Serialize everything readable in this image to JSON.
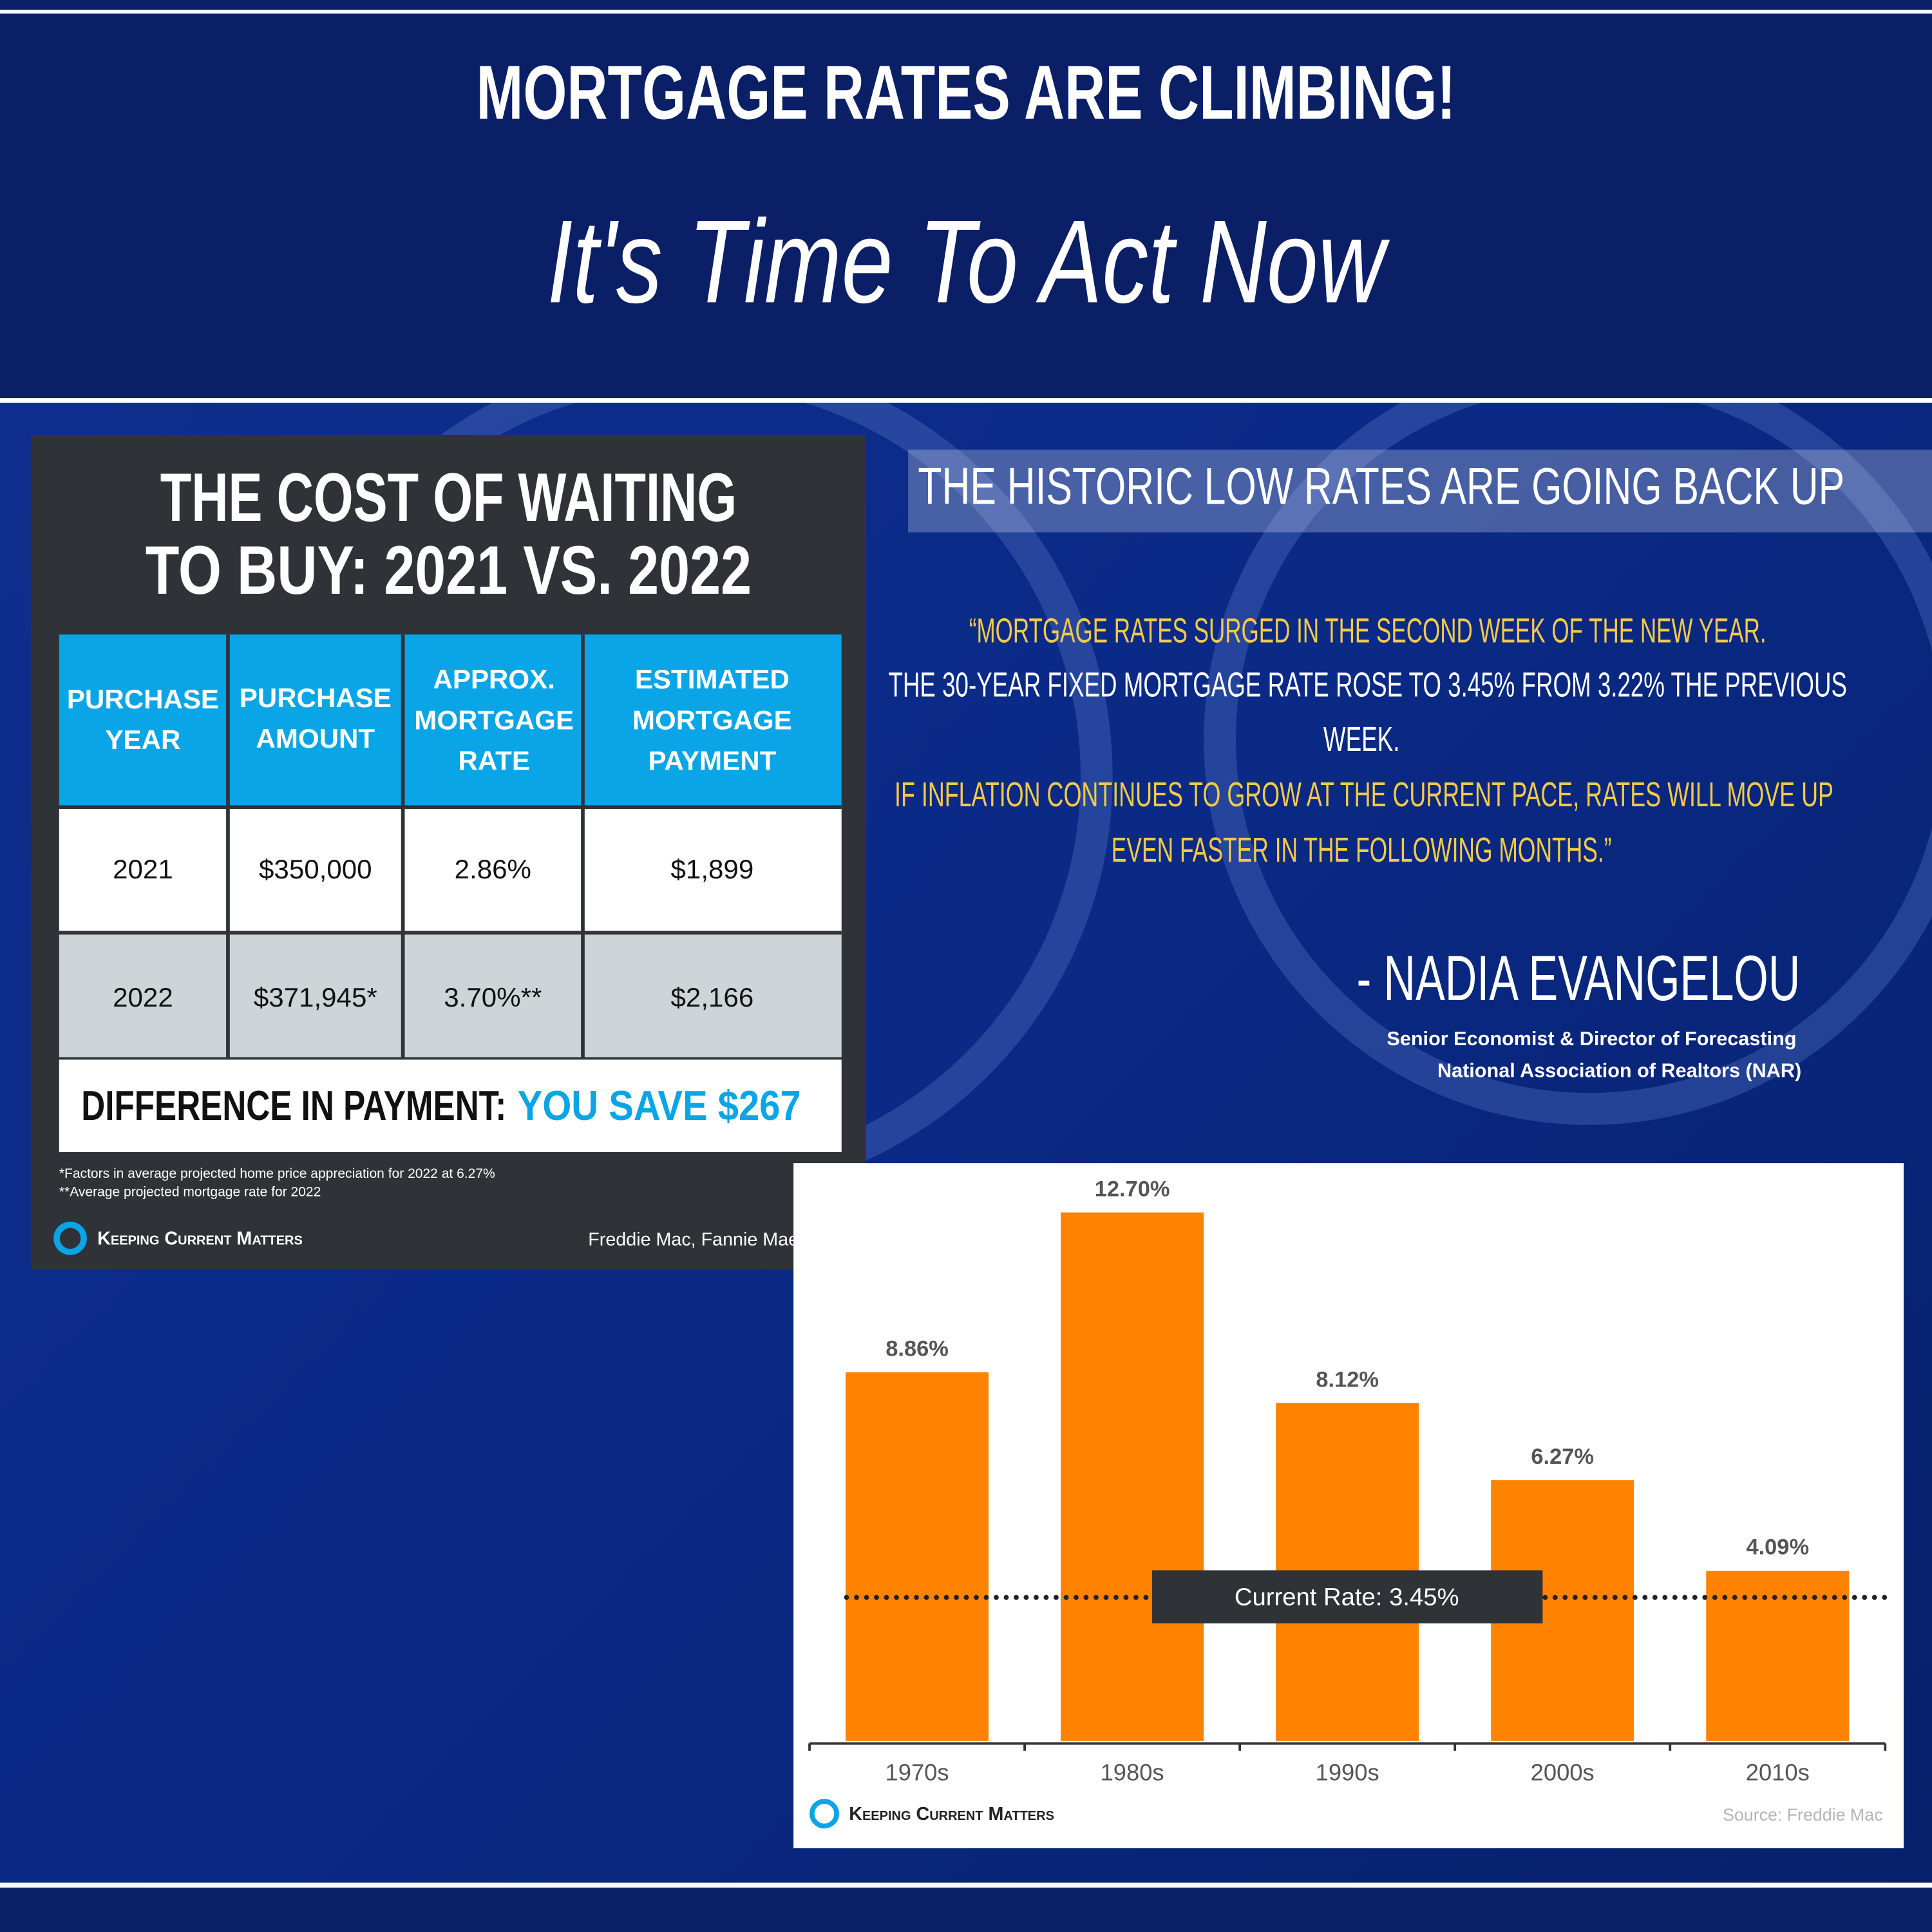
{
  "header": {
    "title": "MORTGAGE RATES ARE CLIMBING!",
    "subtitle": "It's Time To Act Now"
  },
  "table": {
    "title": [
      "THE COST OF WAITING",
      "TO BUY: 2021 VS. 2022"
    ],
    "columns": [
      [
        "PURCHASE",
        "YEAR"
      ],
      [
        "PURCHASE",
        "AMOUNT"
      ],
      [
        "APPROX.",
        "MORTGAGE",
        "RATE"
      ],
      [
        "ESTIMATED",
        "MORTGAGE",
        "PAYMENT"
      ]
    ],
    "rows": [
      [
        "2021",
        "$350,000",
        "2.86%",
        "$1,899"
      ],
      [
        "2022",
        "$371,945*",
        "3.70%**",
        "$2,166"
      ]
    ],
    "difference": {
      "label": "DIFFERENCE IN PAYMENT:",
      "value": "YOU SAVE $267"
    },
    "footnotes": [
      "*Factors in average projected home price appreciation for 2022 at 6.27%",
      "**Average projected mortgage rate for 2022"
    ],
    "brand": "Keeping Current Matters",
    "source": "Freddie Mac, Fannie Mae, MBA"
  },
  "quote": {
    "heading": "THE HISTORIC LOW RATES ARE GOING BACK UP",
    "lines": [
      "“MORTGAGE RATES SURGED IN THE SECOND WEEK OF THE NEW YEAR.",
      "THE 30-YEAR FIXED MORTGAGE RATE ROSE TO 3.45% FROM 3.22% THE PREVIOUS",
      "WEEK.",
      "IF INFLATION CONTINUES TO GROW AT THE CURRENT PACE, RATES WILL MOVE UP",
      "EVEN FASTER IN THE FOLLOWING MONTHS.”"
    ],
    "author": "- NADIA EVANGELOU",
    "author_titles": [
      "Senior Economist & Director of Forecasting",
      "National Association of Realtors (NAR)"
    ]
  },
  "chart_data": {
    "type": "bar",
    "categories": [
      "1970s",
      "1980s",
      "1990s",
      "2000s",
      "2010s"
    ],
    "values": [
      8.86,
      12.7,
      8.12,
      6.27,
      4.09
    ],
    "value_labels": [
      "8.86%",
      "12.70%",
      "8.12%",
      "6.27%",
      "4.09%"
    ],
    "color": "#ff8200",
    "reference_line": {
      "value": 3.45,
      "label": "Current Rate: 3.45%"
    },
    "brand": "Keeping Current Matters",
    "source": "Source: Freddie Mac"
  }
}
